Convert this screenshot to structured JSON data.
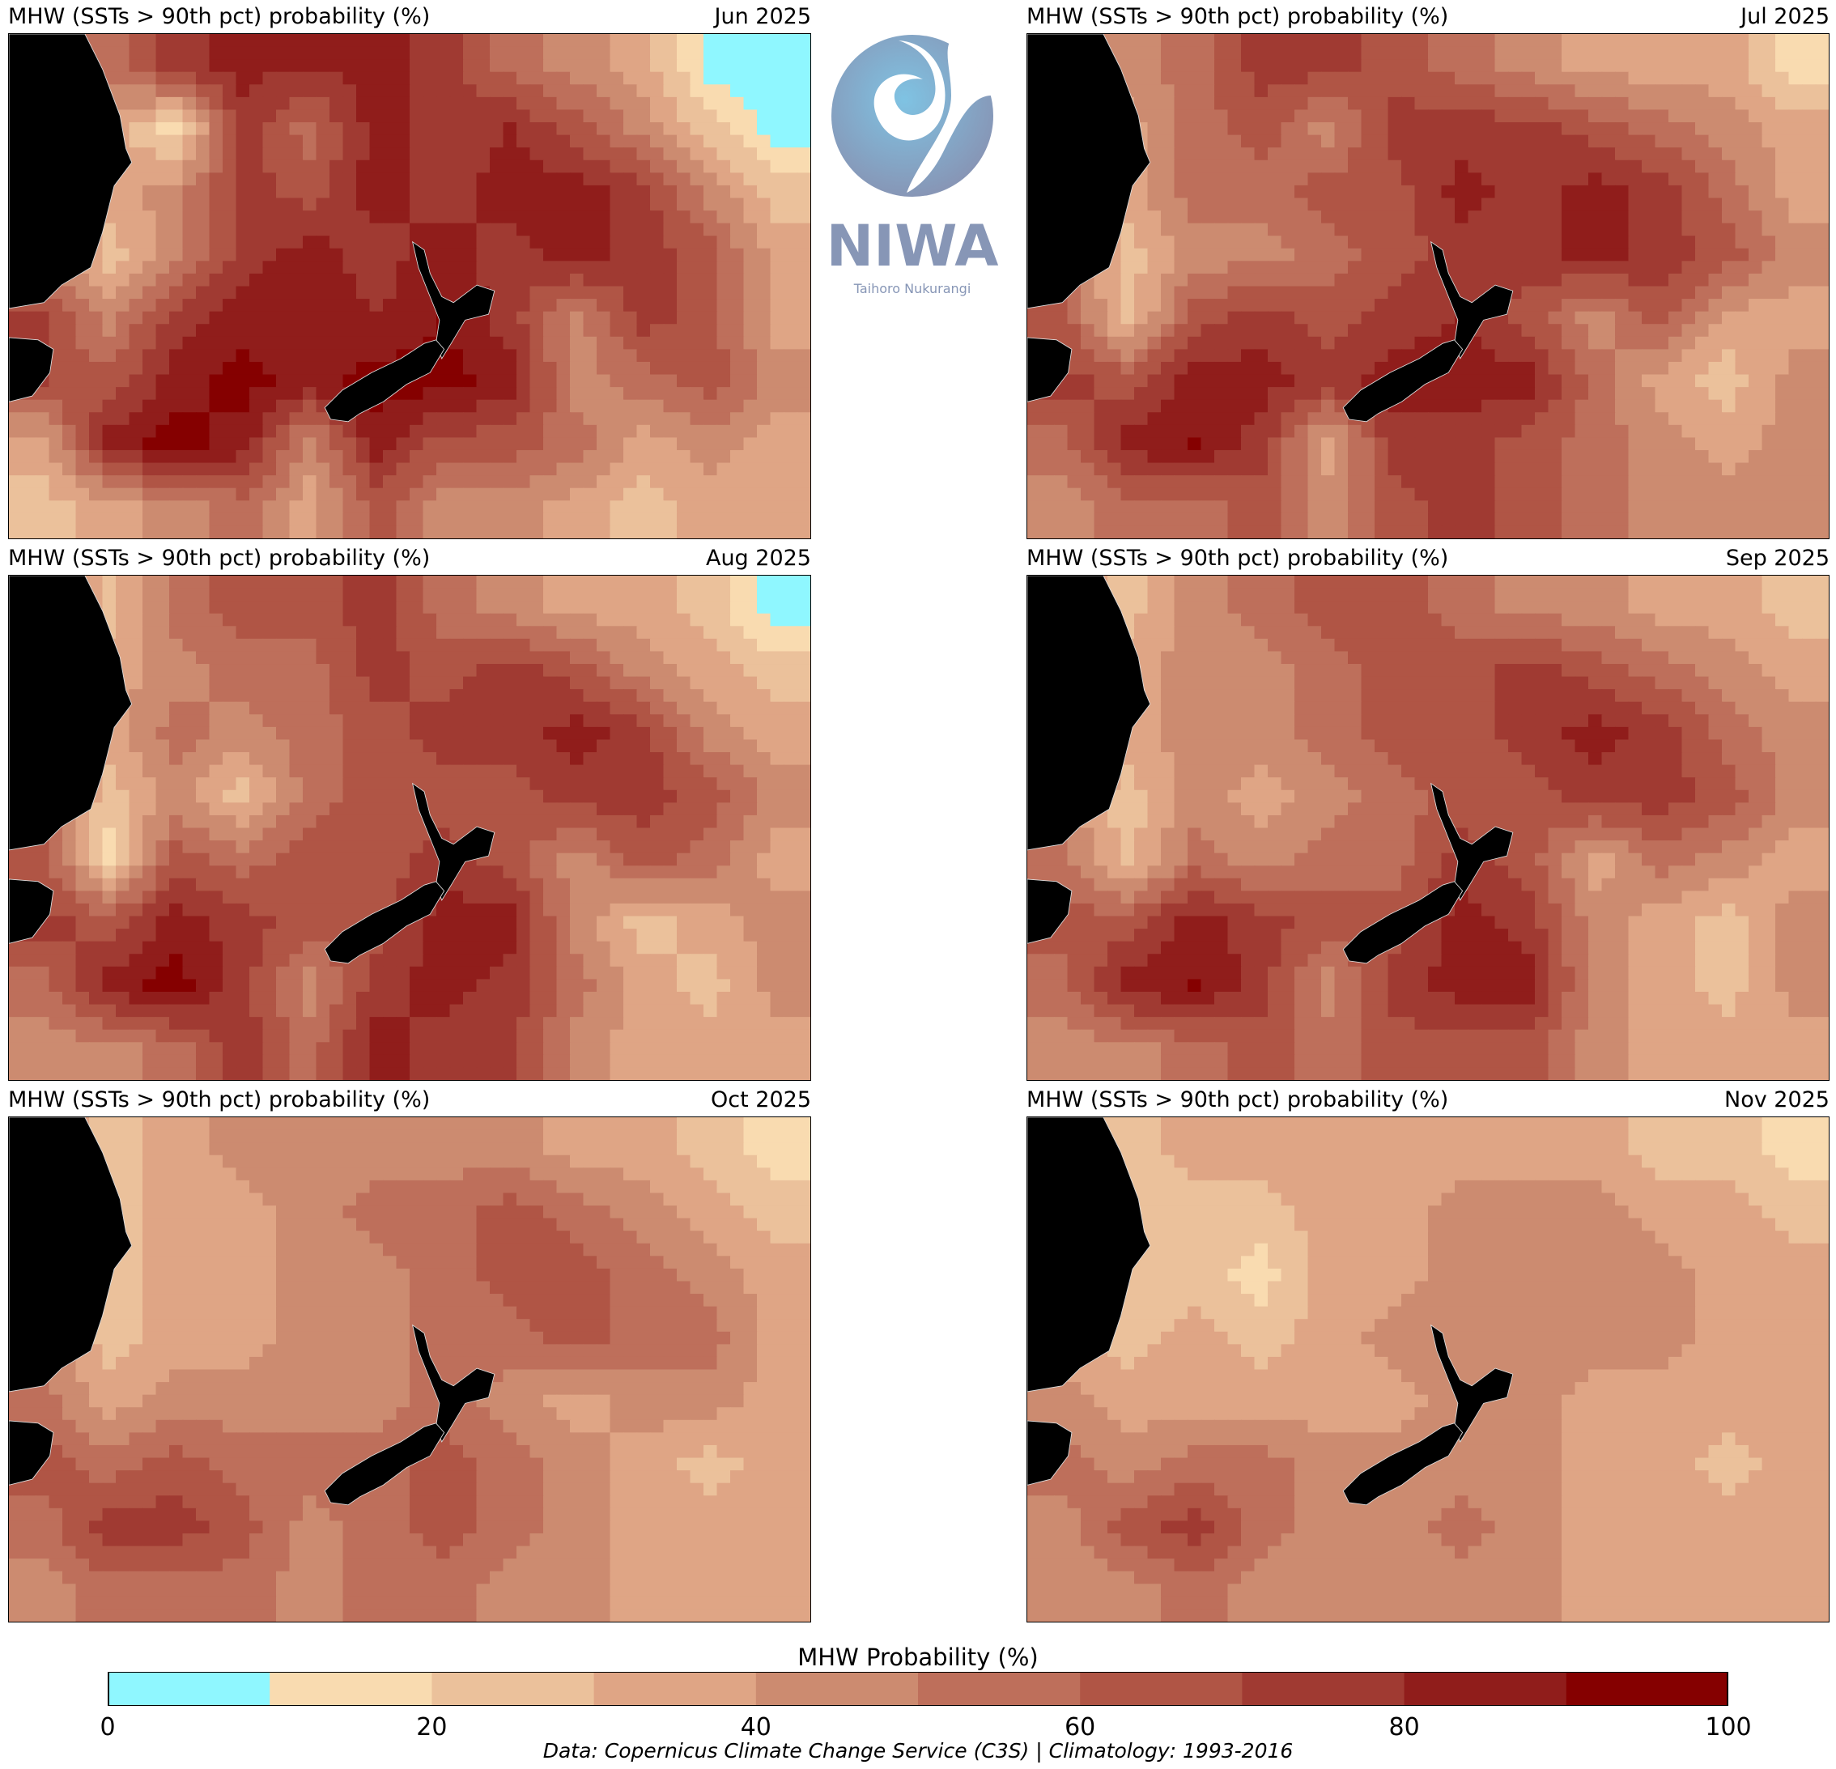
{
  "logo": {
    "name": "NIWA",
    "tagline": "Taihoro Nukurangi"
  },
  "colorbar": {
    "label": "MHW Probability (%)",
    "ticks": [
      "0",
      "20",
      "40",
      "60",
      "80",
      "100"
    ],
    "levels": [
      0,
      10,
      20,
      30,
      40,
      50,
      60,
      70,
      80,
      90,
      100
    ],
    "colors": [
      "#8ff7ff",
      "#f9dbb0",
      "#ebc19b",
      "#dfa585",
      "#cc8b70",
      "#be6f5b",
      "#b05545",
      "#a03a32",
      "#901d1b",
      "#850000"
    ]
  },
  "footer": "Data: Copernicus Climate Change Service (C3S) | Climatology: 1993-2016",
  "land_color": "#000000",
  "chart_data": [
    {
      "type": "heatmap",
      "title": "MHW (SSTs > 90th pct) probability (%)",
      "date": "Jun 2025",
      "values": [
        [
          60,
          55,
          75,
          85,
          80,
          85,
          75,
          55,
          45,
          35,
          5,
          5
        ],
        [
          60,
          35,
          15,
          75,
          55,
          85,
          75,
          80,
          65,
          45,
          25,
          5
        ],
        [
          60,
          35,
          45,
          75,
          65,
          85,
          75,
          85,
          85,
          75,
          45,
          25
        ],
        [
          50,
          25,
          45,
          75,
          85,
          75,
          85,
          75,
          85,
          75,
          65,
          35
        ],
        [
          70,
          45,
          75,
          85,
          85,
          80,
          90,
          75,
          45,
          75,
          65,
          35
        ],
        [
          70,
          65,
          85,
          95,
          85,
          95,
          95,
          85,
          45,
          55,
          65,
          45
        ],
        [
          35,
          85,
          95,
          85,
          45,
          85,
          65,
          65,
          55,
          35,
          45,
          35
        ],
        [
          25,
          35,
          45,
          55,
          35,
          65,
          45,
          45,
          35,
          25,
          35,
          35
        ]
      ]
    },
    {
      "type": "heatmap",
      "title": "MHW (SSTs > 90th pct) probability (%)",
      "date": "Jul 2025",
      "values": [
        [
          50,
          45,
          55,
          75,
          75,
          65,
          55,
          45,
          35,
          35,
          35,
          15
        ],
        [
          50,
          35,
          55,
          65,
          45,
          75,
          75,
          75,
          65,
          55,
          45,
          35
        ],
        [
          45,
          35,
          55,
          55,
          65,
          65,
          85,
          75,
          85,
          75,
          55,
          35
        ],
        [
          55,
          25,
          45,
          45,
          55,
          65,
          75,
          75,
          85,
          75,
          65,
          45
        ],
        [
          65,
          25,
          65,
          75,
          65,
          75,
          80,
          65,
          45,
          65,
          35,
          35
        ],
        [
          75,
          65,
          85,
          85,
          75,
          85,
          85,
          85,
          55,
          35,
          25,
          45
        ],
        [
          55,
          85,
          90,
          75,
          35,
          75,
          75,
          65,
          55,
          45,
          35,
          45
        ],
        [
          45,
          55,
          55,
          65,
          45,
          65,
          75,
          65,
          55,
          45,
          45,
          45
        ]
      ]
    },
    {
      "type": "heatmap",
      "title": "MHW (SSTs > 90th pct) probability (%)",
      "date": "Aug 2025",
      "values": [
        [
          50,
          25,
          55,
          65,
          65,
          75,
          55,
          45,
          35,
          35,
          25,
          5
        ],
        [
          50,
          35,
          45,
          55,
          55,
          75,
          65,
          75,
          65,
          45,
          35,
          25
        ],
        [
          45,
          35,
          55,
          45,
          55,
          65,
          75,
          75,
          85,
          75,
          45,
          35
        ],
        [
          55,
          25,
          45,
          25,
          55,
          65,
          65,
          65,
          75,
          75,
          65,
          45
        ],
        [
          65,
          15,
          65,
          55,
          65,
          65,
          75,
          65,
          45,
          65,
          55,
          35
        ],
        [
          75,
          65,
          85,
          75,
          65,
          65,
          85,
          85,
          45,
          25,
          35,
          45
        ],
        [
          55,
          85,
          95,
          75,
          45,
          75,
          85,
          75,
          55,
          35,
          25,
          45
        ],
        [
          45,
          45,
          55,
          75,
          55,
          85,
          75,
          75,
          45,
          35,
          35,
          35
        ]
      ]
    },
    {
      "type": "heatmap",
      "title": "MHW (SSTs > 90th pct) probability (%)",
      "date": "Sep 2025",
      "values": [
        [
          45,
          25,
          45,
          55,
          65,
          65,
          55,
          45,
          45,
          35,
          35,
          25
        ],
        [
          45,
          35,
          45,
          45,
          55,
          65,
          65,
          75,
          65,
          55,
          45,
          35
        ],
        [
          45,
          35,
          45,
          45,
          55,
          65,
          65,
          75,
          85,
          75,
          55,
          45
        ],
        [
          45,
          25,
          45,
          35,
          45,
          55,
          65,
          65,
          75,
          75,
          65,
          45
        ],
        [
          55,
          25,
          55,
          45,
          55,
          55,
          75,
          65,
          35,
          55,
          45,
          35
        ],
        [
          65,
          65,
          85,
          75,
          65,
          65,
          85,
          75,
          45,
          35,
          25,
          45
        ],
        [
          55,
          85,
          90,
          75,
          45,
          75,
          85,
          85,
          45,
          35,
          25,
          45
        ],
        [
          45,
          45,
          55,
          65,
          55,
          65,
          65,
          65,
          45,
          35,
          35,
          35
        ]
      ]
    },
    {
      "type": "heatmap",
      "title": "MHW (SSTs > 90th pct) probability (%)",
      "date": "Oct 2025",
      "values": [
        [
          45,
          25,
          35,
          45,
          45,
          45,
          45,
          45,
          35,
          35,
          25,
          15
        ],
        [
          45,
          25,
          35,
          35,
          45,
          55,
          55,
          65,
          55,
          45,
          35,
          25
        ],
        [
          45,
          25,
          35,
          35,
          45,
          45,
          55,
          65,
          65,
          55,
          45,
          35
        ],
        [
          45,
          25,
          35,
          35,
          45,
          45,
          55,
          55,
          65,
          55,
          55,
          35
        ],
        [
          55,
          35,
          45,
          45,
          45,
          45,
          55,
          45,
          35,
          45,
          45,
          35
        ],
        [
          65,
          55,
          65,
          55,
          55,
          55,
          65,
          55,
          45,
          35,
          25,
          35
        ],
        [
          55,
          75,
          75,
          65,
          45,
          55,
          65,
          55,
          45,
          35,
          35,
          35
        ],
        [
          45,
          55,
          55,
          55,
          45,
          55,
          55,
          45,
          45,
          35,
          35,
          35
        ]
      ]
    },
    {
      "type": "heatmap",
      "title": "MHW (SSTs > 90th pct) probability (%)",
      "date": "Nov 2025",
      "values": [
        [
          35,
          25,
          35,
          35,
          35,
          35,
          35,
          35,
          35,
          25,
          25,
          15
        ],
        [
          35,
          25,
          25,
          25,
          35,
          35,
          45,
          45,
          45,
          35,
          35,
          25
        ],
        [
          35,
          25,
          25,
          15,
          35,
          35,
          45,
          45,
          45,
          45,
          35,
          35
        ],
        [
          35,
          25,
          35,
          25,
          35,
          45,
          45,
          45,
          45,
          45,
          35,
          35
        ],
        [
          45,
          35,
          35,
          35,
          35,
          35,
          45,
          45,
          35,
          35,
          35,
          35
        ],
        [
          55,
          45,
          55,
          55,
          45,
          45,
          45,
          45,
          35,
          35,
          25,
          35
        ],
        [
          45,
          65,
          75,
          55,
          45,
          45,
          55,
          45,
          35,
          35,
          35,
          35
        ],
        [
          45,
          45,
          55,
          45,
          45,
          45,
          45,
          45,
          35,
          35,
          35,
          35
        ]
      ]
    }
  ]
}
